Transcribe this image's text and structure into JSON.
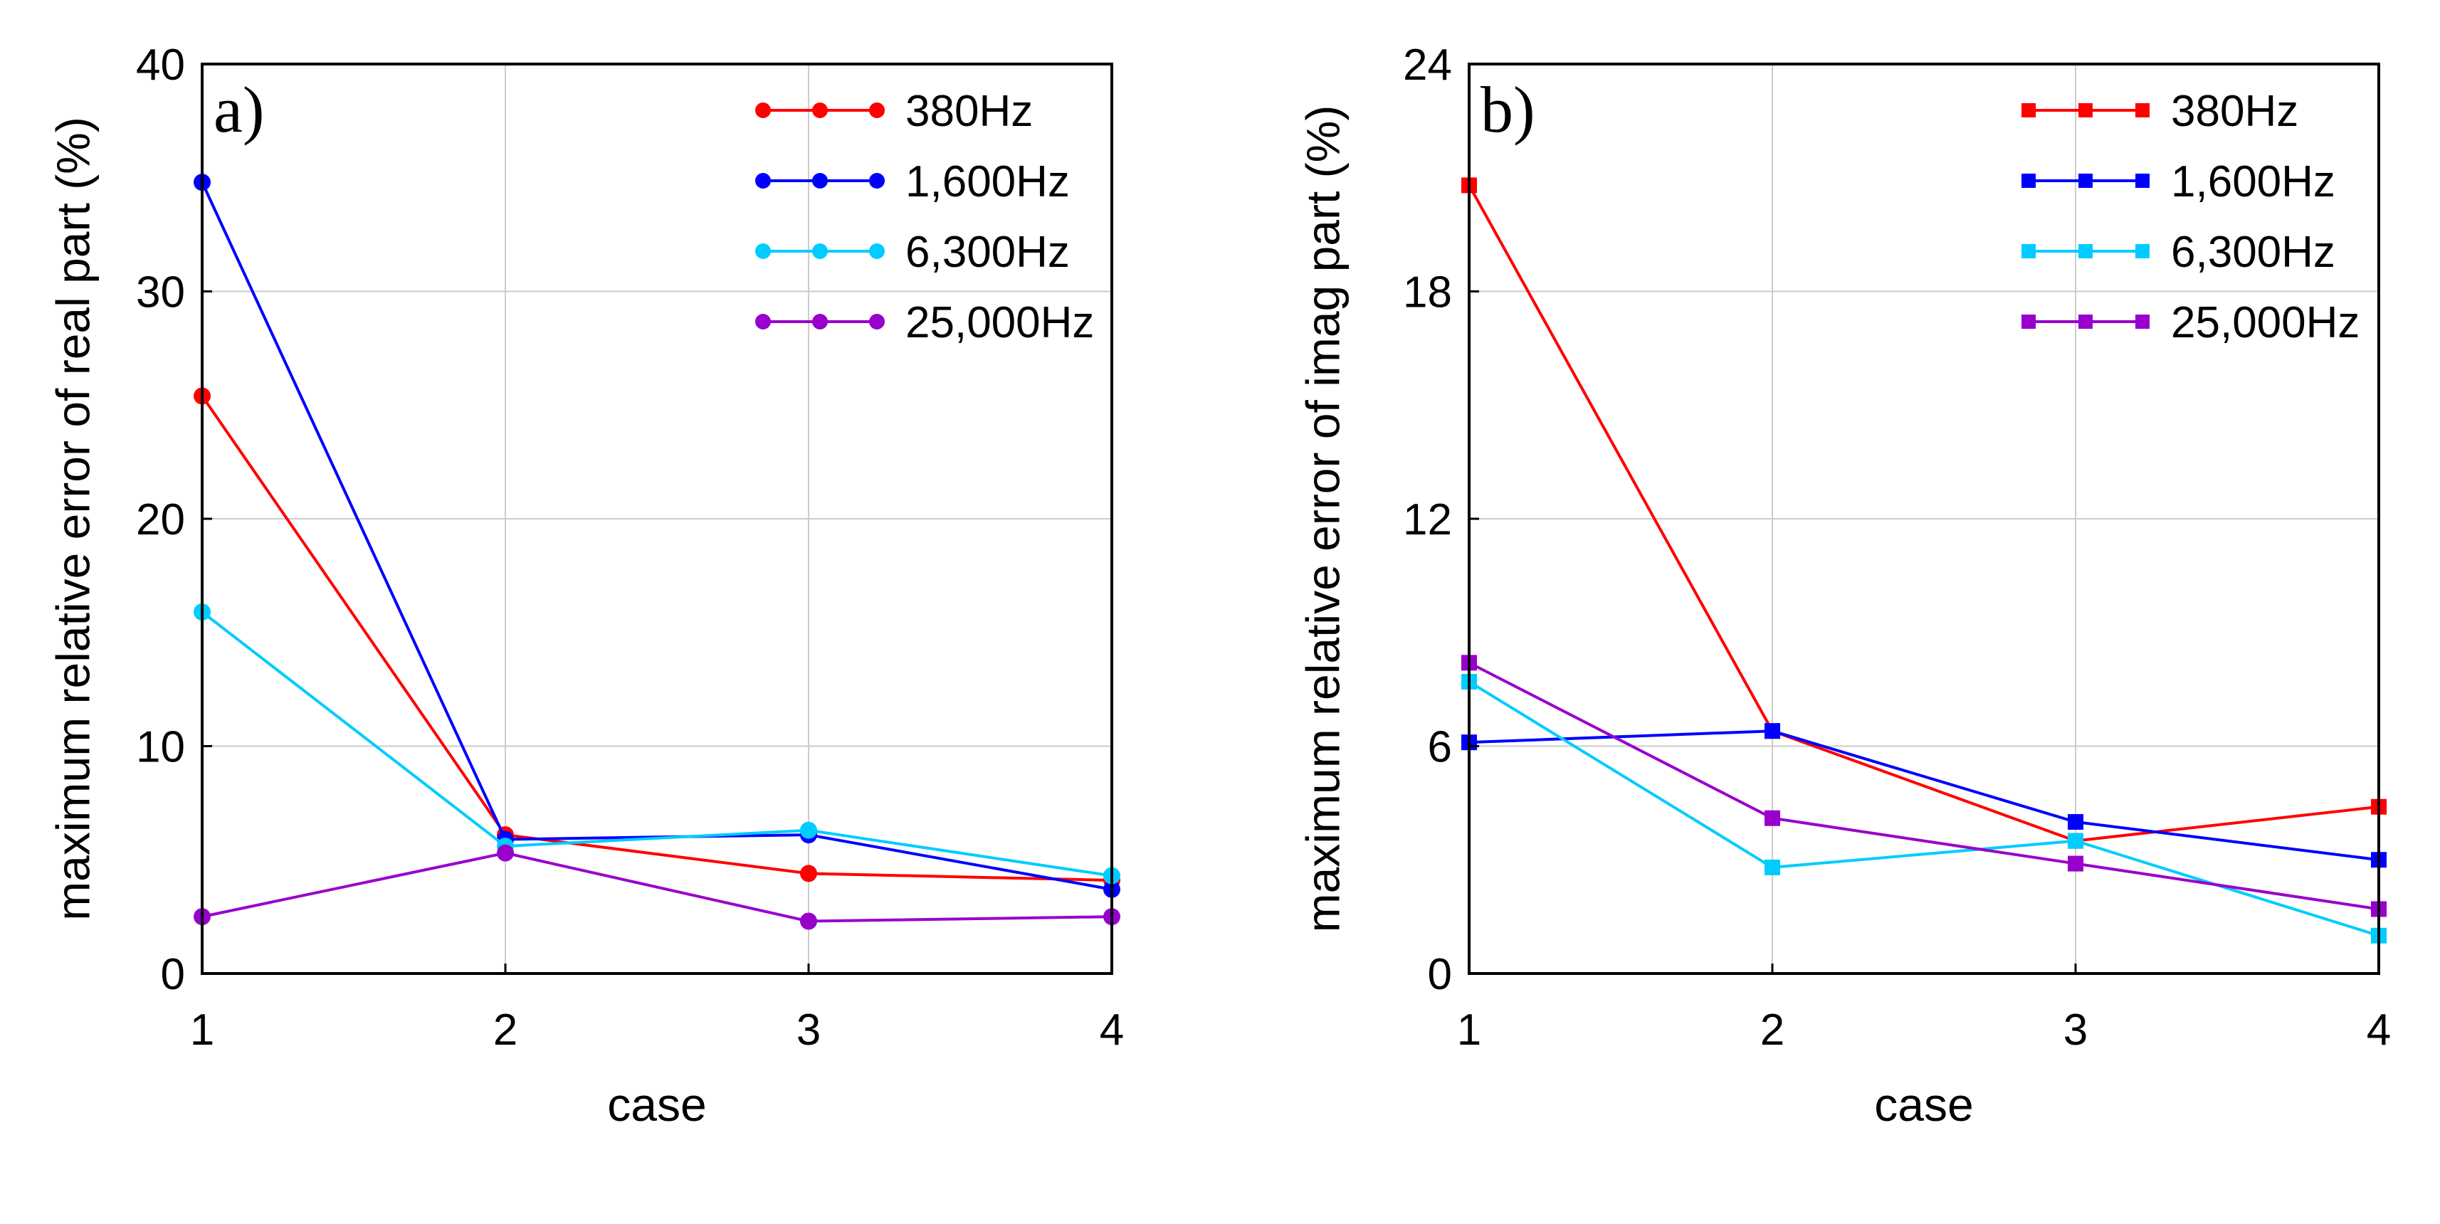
{
  "chart_data": [
    {
      "type": "line",
      "panel_label": "a)",
      "title": "",
      "xlabel": "case",
      "ylabel": "maximum relative error of real part (%)",
      "xlim": [
        1,
        4
      ],
      "ylim": [
        0,
        40
      ],
      "x": [
        1,
        2,
        3,
        4
      ],
      "x_ticks": [
        "1",
        "2",
        "3",
        "4"
      ],
      "y_ticks": [
        "0",
        "10",
        "20",
        "30",
        "40"
      ],
      "y_tick_values": [
        0,
        10,
        20,
        30,
        40
      ],
      "grid": true,
      "legend_position": "top-right",
      "marker": "circle",
      "series": [
        {
          "name": "380Hz",
          "color": "#ff0000",
          "values": [
            25.4,
            6.1,
            4.4,
            4.1
          ]
        },
        {
          "name": "1,600Hz",
          "color": "#0000ff",
          "values": [
            34.8,
            5.9,
            6.1,
            3.7
          ]
        },
        {
          "name": "6,300Hz",
          "color": "#00ccff",
          "values": [
            15.9,
            5.6,
            6.3,
            4.3
          ]
        },
        {
          "name": "25,000Hz",
          "color": "#9900cc",
          "values": [
            2.5,
            5.3,
            2.3,
            2.5
          ]
        }
      ]
    },
    {
      "type": "line",
      "panel_label": "b)",
      "title": "",
      "xlabel": "case",
      "ylabel": "maximum relative error of imag part (%)",
      "xlim": [
        1,
        4
      ],
      "ylim": [
        0,
        24
      ],
      "x": [
        1,
        2,
        3,
        4
      ],
      "x_ticks": [
        "1",
        "2",
        "3",
        "4"
      ],
      "y_ticks": [
        "0",
        "6",
        "12",
        "18",
        "24"
      ],
      "y_tick_values": [
        0,
        6,
        12,
        18,
        24
      ],
      "grid": true,
      "legend_position": "top-right",
      "marker": "square",
      "series": [
        {
          "name": "380Hz",
          "color": "#ff0000",
          "values": [
            20.8,
            6.4,
            3.5,
            4.4
          ]
        },
        {
          "name": "1,600Hz",
          "color": "#0000ff",
          "values": [
            6.1,
            6.4,
            4.0,
            3.0
          ]
        },
        {
          "name": "6,300Hz",
          "color": "#00ccff",
          "values": [
            7.7,
            2.8,
            3.5,
            1.0
          ]
        },
        {
          "name": "25,000Hz",
          "color": "#9900cc",
          "values": [
            8.2,
            4.1,
            2.9,
            1.7
          ]
        }
      ]
    }
  ]
}
